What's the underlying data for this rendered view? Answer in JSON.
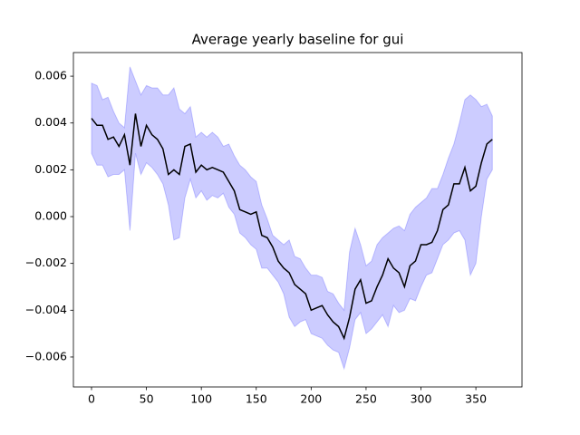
{
  "chart_data": {
    "type": "band-line",
    "title": "Average yearly baseline for gui",
    "x": [
      0,
      5,
      10,
      15,
      20,
      25,
      30,
      35,
      40,
      45,
      50,
      55,
      60,
      65,
      70,
      75,
      80,
      85,
      90,
      95,
      100,
      105,
      110,
      115,
      120,
      125,
      130,
      135,
      140,
      145,
      150,
      155,
      160,
      165,
      170,
      175,
      180,
      185,
      190,
      195,
      200,
      205,
      210,
      215,
      220,
      225,
      230,
      235,
      240,
      245,
      250,
      255,
      260,
      265,
      270,
      275,
      280,
      285,
      290,
      295,
      300,
      305,
      310,
      315,
      320,
      325,
      330,
      335,
      340,
      345,
      350,
      355,
      360,
      365
    ],
    "line": {
      "color": "#000000",
      "values": [
        0.0042,
        0.0039,
        0.0039,
        0.0033,
        0.0034,
        0.003,
        0.0035,
        0.0022,
        0.0044,
        0.003,
        0.0039,
        0.0035,
        0.0033,
        0.0029,
        0.0018,
        0.002,
        0.0018,
        0.003,
        0.0031,
        0.0019,
        0.0022,
        0.002,
        0.0021,
        0.002,
        0.0019,
        0.0015,
        0.0011,
        0.0003,
        0.0002,
        0.0001,
        0.0002,
        -0.0008,
        -0.0009,
        -0.0013,
        -0.0019,
        -0.0022,
        -0.0024,
        -0.0029,
        -0.0031,
        -0.0033,
        -0.004,
        -0.0039,
        -0.0038,
        -0.0042,
        -0.0045,
        -0.0047,
        -0.0052,
        -0.0043,
        -0.0031,
        -0.0027,
        -0.0037,
        -0.0036,
        -0.003,
        -0.0025,
        -0.0018,
        -0.0022,
        -0.0024,
        -0.003,
        -0.0021,
        -0.0019,
        -0.0012,
        -0.0012,
        -0.0011,
        -0.0006,
        0.0003,
        0.0005,
        0.0014,
        0.0014,
        0.0021,
        0.0011,
        0.0013,
        0.0023,
        0.0031,
        0.0033
      ]
    },
    "band": {
      "color": "#0000ff",
      "upper": [
        0.0057,
        0.0056,
        0.005,
        0.0051,
        0.0045,
        0.004,
        0.0038,
        0.0064,
        0.0058,
        0.0052,
        0.0056,
        0.0055,
        0.0055,
        0.0052,
        0.0052,
        0.0055,
        0.0046,
        0.0044,
        0.0047,
        0.0034,
        0.0036,
        0.0034,
        0.0036,
        0.0034,
        0.003,
        0.0031,
        0.0026,
        0.0022,
        0.002,
        0.0017,
        0.0015,
        0.0005,
        -0.0001,
        -0.0008,
        -0.001,
        -0.0012,
        -0.001,
        -0.0017,
        -0.0018,
        -0.0022,
        -0.0025,
        -0.0025,
        -0.0026,
        -0.0032,
        -0.0033,
        -0.0037,
        -0.004,
        -0.0015,
        -0.0005,
        -0.0012,
        -0.0021,
        -0.0019,
        -0.0012,
        -0.0009,
        -0.0007,
        -0.0005,
        -0.0004,
        -0.0006,
        0.0001,
        0.0004,
        0.0006,
        0.0008,
        0.0012,
        0.0012,
        0.0018,
        0.0025,
        0.0031,
        0.004,
        0.005,
        0.0052,
        0.005,
        0.0047,
        0.0048,
        0.0043
      ],
      "lower": [
        0.0027,
        0.0022,
        0.0022,
        0.0017,
        0.0018,
        0.0018,
        0.002,
        -0.0006,
        0.0027,
        0.0018,
        0.0023,
        0.0021,
        0.0018,
        0.0014,
        0.0005,
        -0.001,
        -0.0009,
        0.0008,
        0.0016,
        0.0008,
        0.0011,
        0.0007,
        0.0009,
        0.0008,
        0.001,
        0.0004,
        0.0001,
        -0.0007,
        -0.0009,
        -0.0012,
        -0.0014,
        -0.0022,
        -0.0022,
        -0.0025,
        -0.0028,
        -0.0033,
        -0.0043,
        -0.0047,
        -0.0045,
        -0.0044,
        -0.005,
        -0.0051,
        -0.0052,
        -0.0055,
        -0.0057,
        -0.0058,
        -0.0065,
        -0.0056,
        -0.0044,
        -0.0041,
        -0.005,
        -0.0048,
        -0.0045,
        -0.0042,
        -0.0047,
        -0.0038,
        -0.0041,
        -0.004,
        -0.0035,
        -0.0036,
        -0.003,
        -0.0025,
        -0.0024,
        -0.0018,
        -0.0012,
        -0.001,
        -0.0007,
        -0.0006,
        -0.001,
        -0.0025,
        -0.002,
        0.0,
        0.0016,
        0.002
      ]
    },
    "xlim": [
      -16.5,
      392
    ],
    "xticks": [
      0,
      50,
      100,
      150,
      200,
      250,
      300,
      350
    ],
    "ylim": [
      -0.00728,
      0.00701
    ],
    "yticks": [
      {
        "value": -0.006,
        "label": "−0.006"
      },
      {
        "value": -0.004,
        "label": "−0.004"
      },
      {
        "value": -0.002,
        "label": "−0.002"
      },
      {
        "value": 0,
        "label": "0.000"
      },
      {
        "value": 0.002,
        "label": "0.002"
      },
      {
        "value": 0.004,
        "label": "0.004"
      },
      {
        "value": 0.006,
        "label": "0.006"
      }
    ]
  }
}
